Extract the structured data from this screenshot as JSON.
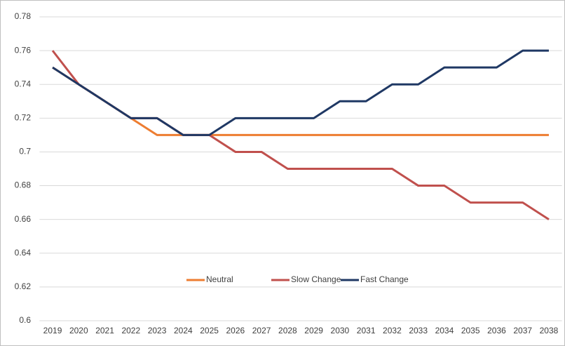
{
  "chart_data": {
    "type": "line",
    "categories": [
      "2019",
      "2020",
      "2021",
      "2022",
      "2023",
      "2024",
      "2025",
      "2026",
      "2027",
      "2028",
      "2029",
      "2030",
      "2031",
      "2032",
      "2033",
      "2034",
      "2035",
      "2036",
      "2037",
      "2038"
    ],
    "series": [
      {
        "name": "Neutral",
        "color": "#ed7d31",
        "values": [
          0.75,
          0.74,
          0.73,
          0.72,
          0.71,
          0.71,
          0.71,
          0.71,
          0.71,
          0.71,
          0.71,
          0.71,
          0.71,
          0.71,
          0.71,
          0.71,
          0.71,
          0.71,
          0.71,
          0.71
        ]
      },
      {
        "name": "Slow Change",
        "color": "#c0504d",
        "values": [
          0.76,
          0.74,
          0.73,
          0.72,
          0.72,
          0.71,
          0.71,
          0.7,
          0.7,
          0.69,
          0.69,
          0.69,
          0.69,
          0.69,
          0.68,
          0.68,
          0.67,
          0.67,
          0.67,
          0.66
        ]
      },
      {
        "name": "Fast Change",
        "color": "#1f3864",
        "values": [
          0.75,
          0.74,
          0.73,
          0.72,
          0.72,
          0.71,
          0.71,
          0.72,
          0.72,
          0.72,
          0.72,
          0.73,
          0.73,
          0.74,
          0.74,
          0.75,
          0.75,
          0.75,
          0.76,
          0.76
        ]
      }
    ],
    "ylim": [
      0.6,
      0.78
    ],
    "yticks": [
      0.6,
      0.62,
      0.64,
      0.66,
      0.68,
      0.7,
      0.72,
      0.74,
      0.76,
      0.78
    ],
    "grid": true
  }
}
